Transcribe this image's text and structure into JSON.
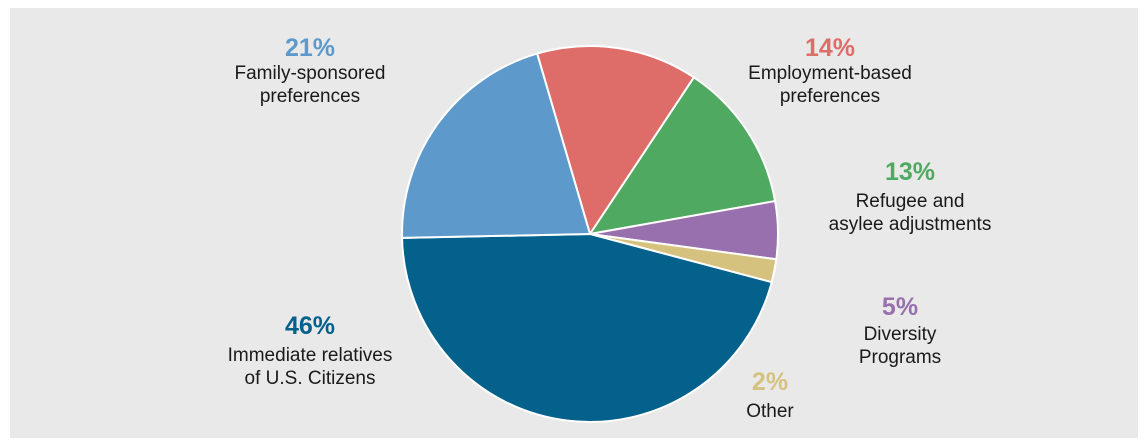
{
  "chart_data": {
    "type": "pie",
    "title": "",
    "slices": [
      {
        "label": "Employment-based preferences",
        "label_lines": [
          "Employment-based",
          "preferences"
        ],
        "percent_label": "14%",
        "value": 14,
        "color": "#de6c68"
      },
      {
        "label": "Refugee and asylee adjustments",
        "label_lines": [
          "Refugee and",
          "asylee adjustments"
        ],
        "percent_label": "13%",
        "value": 13,
        "color": "#50a960"
      },
      {
        "label": "Diversity Programs",
        "label_lines": [
          "Diversity",
          "Programs"
        ],
        "percent_label": "5%",
        "value": 5,
        "color": "#9970ae"
      },
      {
        "label": "Other",
        "label_lines": [
          "Other"
        ],
        "percent_label": "2%",
        "value": 2,
        "color": "#d6c27f"
      },
      {
        "label": "Immediate relatives of U.S. Citizens",
        "label_lines": [
          "Immediate relatives",
          "of U.S. Citizens"
        ],
        "percent_label": "46%",
        "value": 46,
        "color": "#03618c"
      },
      {
        "label": "Family-sponsored preferences",
        "label_lines": [
          "Family-sponsored",
          "preferences"
        ],
        "percent_label": "21%",
        "value": 21,
        "color": "#5d9acb"
      }
    ]
  }
}
